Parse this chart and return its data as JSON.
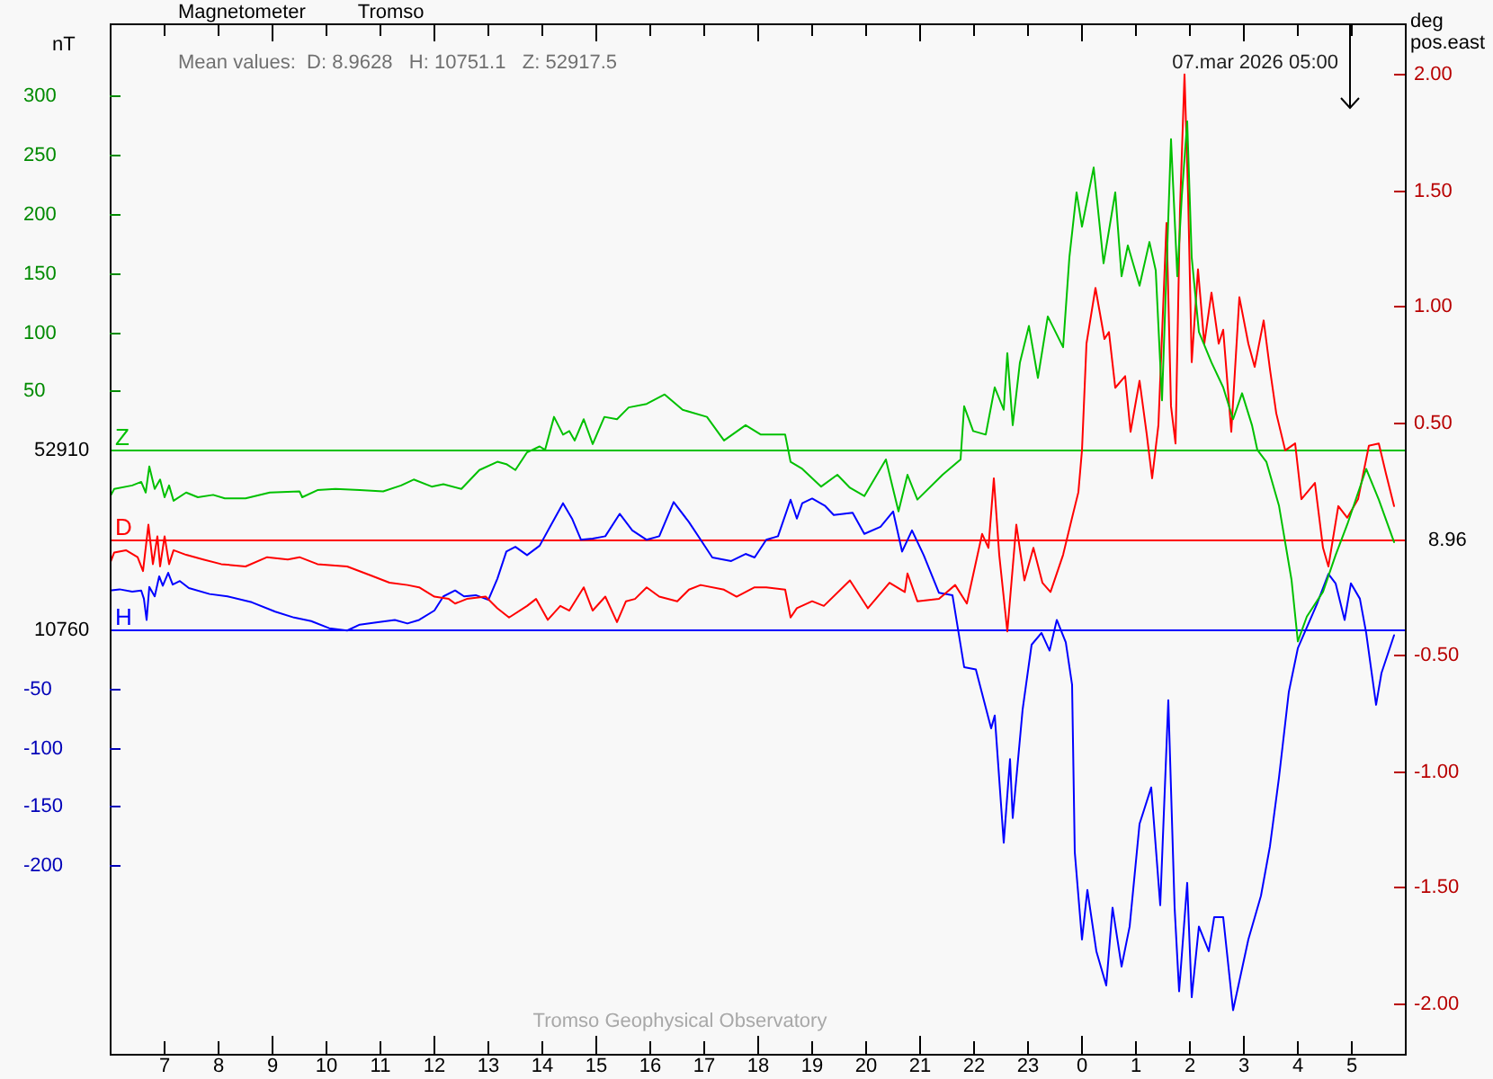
{
  "chart_data": {
    "type": "line",
    "title": "Magnetometer",
    "subtitle": "Tromso",
    "ylabel": "nT",
    "y2label": "deg\npos.east",
    "annotations": [
      "Mean values:  D: 8.9628   H: 10751.1   Z: 52917.5",
      "07.mar 2026 05:00",
      "Tromso Geophysical Observatory",
      "52910",
      "8.96",
      "10760"
    ],
    "xlim": [
      "2026-03-06T06:00",
      "2026-03-07T06:00"
    ],
    "xticks": [
      {
        "value": "2026-03-06T07:00",
        "label": "7"
      },
      {
        "value": "2026-03-06T08:00",
        "label": "8"
      },
      {
        "value": "2026-03-06T09:00",
        "label": "9"
      },
      {
        "value": "2026-03-06T10:00",
        "label": "10"
      },
      {
        "value": "2026-03-06T11:00",
        "label": "11"
      },
      {
        "value": "2026-03-06T12:00",
        "label": "12"
      },
      {
        "value": "2026-03-06T13:00",
        "label": "13"
      },
      {
        "value": "2026-03-06T14:00",
        "label": "14"
      },
      {
        "value": "2026-03-06T15:00",
        "label": "15"
      },
      {
        "value": "2026-03-06T16:00",
        "label": "16"
      },
      {
        "value": "2026-03-06T17:00",
        "label": "17"
      },
      {
        "value": "2026-03-06T18:00",
        "label": "18"
      },
      {
        "value": "2026-03-06T19:00",
        "label": "19"
      },
      {
        "value": "2026-03-06T20:00",
        "label": "20"
      },
      {
        "value": "2026-03-06T21:00",
        "label": "21"
      },
      {
        "value": "2026-03-06T22:00",
        "label": "22"
      },
      {
        "value": "2026-03-06T23:00",
        "label": "23"
      },
      {
        "value": "2026-03-07T00:00",
        "label": "0"
      },
      {
        "value": "2026-03-07T01:00",
        "label": "1"
      },
      {
        "value": "2026-03-07T02:00",
        "label": "2"
      },
      {
        "value": "2026-03-07T03:00",
        "label": "3"
      },
      {
        "value": "2026-03-07T04:00",
        "label": "4"
      },
      {
        "value": "2026-03-07T05:00",
        "label": "5"
      }
    ],
    "ylim": [
      -511,
      361
    ],
    "yticks": [
      50,
      100,
      150,
      200,
      250,
      300
    ],
    "y2lim": [
      -2.22,
      2.22
    ],
    "y2ticks": [
      {
        "value": -2,
        "label": "-2.00"
      },
      {
        "value": -1.5,
        "label": "-1.50"
      },
      {
        "value": -1,
        "label": "-1.00"
      },
      {
        "value": -0.5,
        "label": "-0.50"
      },
      {
        "value": 0.5,
        "label": "0.50"
      },
      {
        "value": 1,
        "label": "1.00"
      },
      {
        "value": 1.5,
        "label": "1.50"
      },
      {
        "value": 2,
        "label": "2.00"
      }
    ],
    "y3lim": [
      -360,
      514
    ],
    "y3ticks": [
      -200,
      -150,
      -100,
      -50
    ],
    "ref_lines": [
      {
        "axis": "y",
        "value": 0,
        "label": "Z",
        "color": "#00c000"
      },
      {
        "axis": "y2",
        "value": 0,
        "label": "D",
        "color": "#ff0000"
      },
      {
        "axis": "y3",
        "value": 0,
        "label": "H",
        "color": "#0000ff"
      }
    ],
    "legend": false,
    "grid": false,
    "series": [
      {
        "color": "#00c000",
        "x": [
          "2026-03-06T06:00",
          "2026-03-06T06:05",
          "2026-03-06T06:25",
          "2026-03-06T06:35",
          "2026-03-06T06:40",
          "2026-03-06T06:44",
          "2026-03-06T06:50",
          "2026-03-06T06:56",
          "2026-03-06T07:01",
          "2026-03-06T07:06",
          "2026-03-06T07:11",
          "2026-03-06T07:25",
          "2026-03-06T07:38",
          "2026-03-06T07:55",
          "2026-03-06T08:08",
          "2026-03-06T08:31",
          "2026-03-06T08:58",
          "2026-03-06T09:31",
          "2026-03-06T09:34",
          "2026-03-06T09:51",
          "2026-03-06T10:11",
          "2026-03-06T10:38",
          "2026-03-06T11:04",
          "2026-03-06T11:24",
          "2026-03-06T11:38",
          "2026-03-06T11:58",
          "2026-03-06T12:11",
          "2026-03-06T12:31",
          "2026-03-06T12:51",
          "2026-03-06T13:11",
          "2026-03-06T13:21",
          "2026-03-06T13:31",
          "2026-03-06T13:44",
          "2026-03-06T13:58",
          "2026-03-06T14:04",
          "2026-03-06T14:14",
          "2026-03-06T14:24",
          "2026-03-06T14:31",
          "2026-03-06T14:37",
          "2026-03-06T14:47",
          "2026-03-06T14:57",
          "2026-03-06T15:10",
          "2026-03-06T15:24",
          "2026-03-06T15:37",
          "2026-03-06T15:57",
          "2026-03-06T16:17",
          "2026-03-06T16:37",
          "2026-03-06T17:04",
          "2026-03-06T17:23",
          "2026-03-06T17:47",
          "2026-03-06T18:04",
          "2026-03-06T18:31",
          "2026-03-06T18:37",
          "2026-03-06T18:50",
          "2026-03-06T19:11",
          "2026-03-06T19:29",
          "2026-03-06T19:43",
          "2026-03-06T19:59",
          "2026-03-06T20:23",
          "2026-03-06T20:37",
          "2026-03-06T20:47",
          "2026-03-06T20:58",
          "2026-03-06T21:26",
          "2026-03-06T21:46",
          "2026-03-06T21:50",
          "2026-03-06T22:00",
          "2026-03-06T22:14",
          "2026-03-06T22:24",
          "2026-03-06T22:34",
          "2026-03-06T22:38",
          "2026-03-06T22:44",
          "2026-03-06T22:52",
          "2026-03-06T23:02",
          "2026-03-06T23:12",
          "2026-03-06T23:23",
          "2026-03-06T23:40",
          "2026-03-06T23:47",
          "2026-03-06T23:55",
          "2026-03-07T00:01",
          "2026-03-07T00:14",
          "2026-03-07T00:25",
          "2026-03-07T00:38",
          "2026-03-07T00:45",
          "2026-03-07T00:52",
          "2026-03-07T01:05",
          "2026-03-07T01:16",
          "2026-03-07T01:23",
          "2026-03-07T01:30",
          "2026-03-07T01:40",
          "2026-03-07T01:47",
          "2026-03-07T01:52",
          "2026-03-07T01:58",
          "2026-03-07T02:03",
          "2026-03-07T02:11",
          "2026-03-07T02:25",
          "2026-03-07T02:38",
          "2026-03-07T02:49",
          "2026-03-07T02:59",
          "2026-03-07T03:10",
          "2026-03-07T03:16",
          "2026-03-07T03:26",
          "2026-03-07T03:40",
          "2026-03-07T03:54",
          "2026-03-07T04:01",
          "2026-03-07T04:11",
          "2026-03-07T04:29",
          "2026-03-07T04:43",
          "2026-03-07T04:56",
          "2026-03-07T05:17",
          "2026-03-07T05:31",
          "2026-03-07T05:48"
        ],
        "values": [
          -40,
          -33,
          -30,
          -27,
          -36,
          -14,
          -33,
          -25,
          -40,
          -30,
          -43,
          -36,
          -40,
          -38,
          -41,
          -41,
          -36,
          -35,
          -40,
          -34,
          -33,
          -34,
          -35,
          -30,
          -25,
          -31,
          -29,
          -33,
          -17,
          -10,
          -12,
          -17,
          -2,
          3,
          0,
          28,
          13,
          16,
          8,
          26,
          5,
          28,
          26,
          36,
          39,
          47,
          34,
          28,
          8,
          21,
          13,
          13,
          -10,
          -16,
          -31,
          -21,
          -32,
          -39,
          -8,
          -52,
          -21,
          -42,
          -21,
          -8,
          37,
          16,
          13,
          53,
          34,
          82,
          21,
          74,
          105,
          61,
          113,
          87,
          163,
          218,
          189,
          239,
          158,
          218,
          147,
          173,
          139,
          176,
          152,
          42,
          263,
          147,
          215,
          278,
          163,
          100,
          74,
          53,
          26,
          48,
          21,
          0,
          -10,
          -47,
          -110,
          -162,
          -141,
          -120,
          -89,
          -63,
          -16,
          -42,
          -78
        ]
      },
      {
        "color": "#ff0000",
        "axis": "y2",
        "x": [
          "2026-03-06T06:00",
          "2026-03-06T06:05",
          "2026-03-06T06:18",
          "2026-03-06T06:31",
          "2026-03-06T06:37",
          "2026-03-06T06:43",
          "2026-03-06T06:48",
          "2026-03-06T06:53",
          "2026-03-06T06:56",
          "2026-03-06T07:01",
          "2026-03-06T07:06",
          "2026-03-06T07:11",
          "2026-03-06T07:25",
          "2026-03-06T07:44",
          "2026-03-06T08:04",
          "2026-03-06T08:31",
          "2026-03-06T08:55",
          "2026-03-06T09:18",
          "2026-03-06T09:31",
          "2026-03-06T09:51",
          "2026-03-06T10:24",
          "2026-03-06T10:51",
          "2026-03-06T11:11",
          "2026-03-06T11:31",
          "2026-03-06T11:44",
          "2026-03-06T12:01",
          "2026-03-06T12:17",
          "2026-03-06T12:24",
          "2026-03-06T12:37",
          "2026-03-06T12:58",
          "2026-03-06T13:11",
          "2026-03-06T13:24",
          "2026-03-06T13:44",
          "2026-03-06T13:54",
          "2026-03-06T14:07",
          "2026-03-06T14:21",
          "2026-03-06T14:31",
          "2026-03-06T14:47",
          "2026-03-06T14:57",
          "2026-03-06T15:11",
          "2026-03-06T15:24",
          "2026-03-06T15:34",
          "2026-03-06T15:44",
          "2026-03-06T15:57",
          "2026-03-06T16:11",
          "2026-03-06T16:31",
          "2026-03-06T16:44",
          "2026-03-06T16:57",
          "2026-03-06T17:23",
          "2026-03-06T17:37",
          "2026-03-06T17:57",
          "2026-03-06T18:10",
          "2026-03-06T18:31",
          "2026-03-06T18:37",
          "2026-03-06T18:44",
          "2026-03-06T19:01",
          "2026-03-06T19:14",
          "2026-03-06T19:43",
          "2026-03-06T20:03",
          "2026-03-06T20:27",
          "2026-03-06T20:44",
          "2026-03-06T20:47",
          "2026-03-06T20:58",
          "2026-03-06T21:22",
          "2026-03-06T21:40",
          "2026-03-06T21:53",
          "2026-03-06T22:10",
          "2026-03-06T22:17",
          "2026-03-06T22:23",
          "2026-03-06T22:29",
          "2026-03-06T22:38",
          "2026-03-06T22:48",
          "2026-03-06T22:57",
          "2026-03-06T23:07",
          "2026-03-06T23:17",
          "2026-03-06T23:26",
          "2026-03-06T23:40",
          "2026-03-06T23:50",
          "2026-03-06T23:57",
          "2026-03-07T00:01",
          "2026-03-07T00:06",
          "2026-03-07T00:16",
          "2026-03-07T00:26",
          "2026-03-07T00:31",
          "2026-03-07T00:38",
          "2026-03-07T00:49",
          "2026-03-07T00:55",
          "2026-03-07T01:05",
          "2026-03-07T01:13",
          "2026-03-07T01:19",
          "2026-03-07T01:26",
          "2026-03-07T01:35",
          "2026-03-07T01:40",
          "2026-03-07T01:45",
          "2026-03-07T01:50",
          "2026-03-07T01:55",
          "2026-03-07T01:59",
          "2026-03-07T02:03",
          "2026-03-07T02:10",
          "2026-03-07T02:17",
          "2026-03-07T02:25",
          "2026-03-07T02:33",
          "2026-03-07T02:38",
          "2026-03-07T02:47",
          "2026-03-07T02:56",
          "2026-03-07T03:06",
          "2026-03-07T03:13",
          "2026-03-07T03:23",
          "2026-03-07T03:30",
          "2026-03-07T03:37",
          "2026-03-07T03:47",
          "2026-03-07T03:58",
          "2026-03-07T04:05",
          "2026-03-07T04:20",
          "2026-03-07T04:29",
          "2026-03-07T04:35",
          "2026-03-07T04:46",
          "2026-03-07T04:56",
          "2026-03-07T05:08",
          "2026-03-07T05:20",
          "2026-03-07T05:31",
          "2026-03-07T05:39",
          "2026-03-07T05:48"
        ],
        "values": [
          -0.11,
          -0.06,
          -0.05,
          -0.08,
          -0.14,
          0.06,
          -0.11,
          0.01,
          -0.12,
          0.01,
          -0.11,
          -0.05,
          -0.07,
          -0.09,
          -0.11,
          -0.12,
          -0.08,
          -0.09,
          -0.08,
          -0.11,
          -0.12,
          -0.16,
          -0.19,
          -0.2,
          -0.21,
          -0.25,
          -0.26,
          -0.28,
          -0.26,
          -0.25,
          -0.3,
          -0.34,
          -0.29,
          -0.26,
          -0.35,
          -0.29,
          -0.31,
          -0.21,
          -0.31,
          -0.25,
          -0.36,
          -0.27,
          -0.26,
          -0.21,
          -0.25,
          -0.27,
          -0.22,
          -0.2,
          -0.22,
          -0.25,
          -0.21,
          -0.21,
          -0.22,
          -0.34,
          -0.3,
          -0.27,
          -0.29,
          -0.18,
          -0.3,
          -0.19,
          -0.23,
          -0.15,
          -0.27,
          -0.26,
          -0.2,
          -0.28,
          0.02,
          -0.04,
          0.26,
          -0.07,
          -0.4,
          0.06,
          -0.18,
          -0.04,
          -0.19,
          -0.23,
          -0.07,
          0.09,
          0.2,
          0.38,
          0.84,
          1.08,
          0.86,
          0.89,
          0.65,
          0.7,
          0.46,
          0.68,
          0.45,
          0.26,
          0.49,
          1.36,
          0.57,
          0.41,
          1.42,
          2.0,
          1.48,
          0.76,
          1.16,
          0.84,
          1.06,
          0.84,
          0.9,
          0.46,
          1.04,
          0.84,
          0.74,
          0.94,
          0.73,
          0.54,
          0.38,
          0.41,
          0.17,
          0.24,
          -0.04,
          -0.12,
          0.14,
          0.09,
          0.17,
          0.4,
          0.41,
          0.28,
          0.14
        ]
      },
      {
        "color": "#0000ff",
        "axis": "y3",
        "x": [
          "2026-03-06T06:00",
          "2026-03-06T06:11",
          "2026-03-06T06:25",
          "2026-03-06T06:35",
          "2026-03-06T06:38",
          "2026-03-06T06:41",
          "2026-03-06T06:44",
          "2026-03-06T06:50",
          "2026-03-06T06:55",
          "2026-03-06T06:59",
          "2026-03-06T07:05",
          "2026-03-06T07:10",
          "2026-03-06T07:18",
          "2026-03-06T07:28",
          "2026-03-06T07:51",
          "2026-03-06T08:11",
          "2026-03-06T08:38",
          "2026-03-06T09:04",
          "2026-03-06T09:25",
          "2026-03-06T09:44",
          "2026-03-06T10:04",
          "2026-03-06T10:24",
          "2026-03-06T10:38",
          "2026-03-06T10:58",
          "2026-03-06T11:17",
          "2026-03-06T11:31",
          "2026-03-06T11:44",
          "2026-03-06T12:01",
          "2026-03-06T12:11",
          "2026-03-06T12:24",
          "2026-03-06T12:34",
          "2026-03-06T12:47",
          "2026-03-06T13:01",
          "2026-03-06T13:11",
          "2026-03-06T13:21",
          "2026-03-06T13:31",
          "2026-03-06T13:44",
          "2026-03-06T13:58",
          "2026-03-06T14:11",
          "2026-03-06T14:24",
          "2026-03-06T14:34",
          "2026-03-06T14:44",
          "2026-03-06T14:57",
          "2026-03-06T15:11",
          "2026-03-06T15:27",
          "2026-03-06T15:41",
          "2026-03-06T15:57",
          "2026-03-06T16:11",
          "2026-03-06T16:27",
          "2026-03-06T16:44",
          "2026-03-06T16:57",
          "2026-03-06T17:10",
          "2026-03-06T17:31",
          "2026-03-06T17:47",
          "2026-03-06T17:57",
          "2026-03-06T18:10",
          "2026-03-06T18:23",
          "2026-03-06T18:37",
          "2026-03-06T18:44",
          "2026-03-06T18:50",
          "2026-03-06T19:01",
          "2026-03-06T19:15",
          "2026-03-06T19:25",
          "2026-03-06T19:46",
          "2026-03-06T19:59",
          "2026-03-06T20:17",
          "2026-03-06T20:31",
          "2026-03-06T20:41",
          "2026-03-06T20:52",
          "2026-03-06T21:05",
          "2026-03-06T21:22",
          "2026-03-06T21:37",
          "2026-03-06T21:50",
          "2026-03-06T22:03",
          "2026-03-06T22:20",
          "2026-03-06T22:24",
          "2026-03-06T22:34",
          "2026-03-06T22:41",
          "2026-03-06T22:44",
          "2026-03-06T22:55",
          "2026-03-06T23:05",
          "2026-03-06T23:16",
          "2026-03-06T23:25",
          "2026-03-06T23:33",
          "2026-03-06T23:43",
          "2026-03-06T23:50",
          "2026-03-06T23:53",
          "2026-03-07T00:01",
          "2026-03-07T00:07",
          "2026-03-07T00:17",
          "2026-03-07T00:28",
          "2026-03-07T00:35",
          "2026-03-07T00:45",
          "2026-03-07T00:54",
          "2026-03-07T01:05",
          "2026-03-07T01:18",
          "2026-03-07T01:28",
          "2026-03-07T01:37",
          "2026-03-07T01:44",
          "2026-03-07T01:49",
          "2026-03-07T01:58",
          "2026-03-07T02:03",
          "2026-03-07T02:11",
          "2026-03-07T02:22",
          "2026-03-07T02:28",
          "2026-03-07T02:38",
          "2026-03-07T02:49",
          "2026-03-07T03:06",
          "2026-03-07T03:20",
          "2026-03-07T03:30",
          "2026-03-07T03:40",
          "2026-03-07T03:51",
          "2026-03-07T04:01",
          "2026-03-07T04:22",
          "2026-03-07T04:35",
          "2026-03-07T04:43",
          "2026-03-07T04:53",
          "2026-03-07T05:00",
          "2026-03-07T05:10",
          "2026-03-07T05:17",
          "2026-03-07T05:28",
          "2026-03-07T05:34",
          "2026-03-07T05:48"
        ],
        "values": [
          33,
          34,
          32,
          33,
          26,
          8,
          36,
          28,
          45,
          37,
          48,
          38,
          41,
          35,
          30,
          28,
          23,
          15,
          10,
          7,
          1,
          -1,
          4,
          6,
          8,
          5,
          8,
          16,
          28,
          33,
          28,
          29,
          25,
          43,
          66,
          70,
          63,
          71,
          89,
          107,
          94,
          76,
          77,
          79,
          98,
          84,
          76,
          79,
          108,
          91,
          76,
          61,
          58,
          64,
          61,
          76,
          79,
          110,
          94,
          107,
          111,
          105,
          97,
          99,
          81,
          87,
          100,
          66,
          84,
          63,
          31,
          29,
          -32,
          -34,
          -84,
          -73,
          -181,
          -110,
          -160,
          -68,
          -13,
          -3,
          -18,
          8,
          -11,
          -47,
          -189,
          -263,
          -221,
          -273,
          -302,
          -236,
          -286,
          -252,
          -165,
          -134,
          -234,
          -60,
          -236,
          -307,
          -215,
          -312,
          -252,
          -273,
          -244,
          -244,
          -323,
          -263,
          -226,
          -184,
          -126,
          -53,
          -16,
          21,
          47,
          39,
          8,
          39,
          26,
          -3,
          -64,
          -37,
          -5
        ]
      }
    ]
  }
}
